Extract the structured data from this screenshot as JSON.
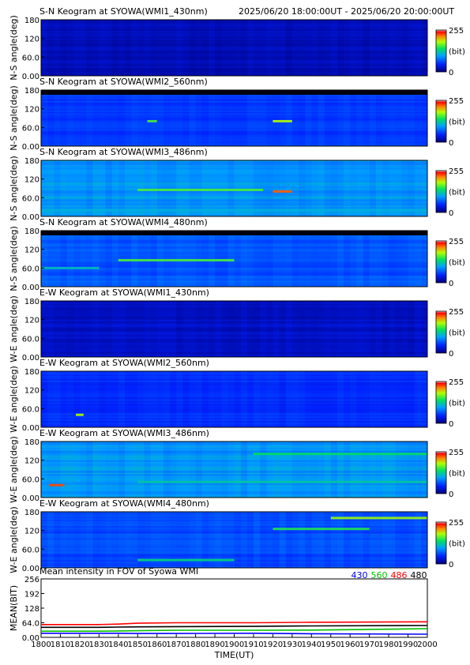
{
  "header": {
    "title": "S-N Keogram at SYOWA(WMI1_430nm)",
    "time_range": "2025/06/20 18:00:00UT - 2025/06/20 20:00:00UT"
  },
  "keograms": [
    {
      "title": "S-N Keogram at SYOWA(WMI1_430nm)",
      "ylabel": "N-S angle(deg)",
      "base": 0.08,
      "noise": 0.05,
      "bright": [],
      "top_dark": false
    },
    {
      "title": "S-N Keogram at SYOWA(WMI2_560nm)",
      "ylabel": "N-S angle(deg)",
      "base": 0.22,
      "noise": 0.05,
      "bright": [
        [
          1855,
          1860,
          80,
          0.62
        ],
        [
          1920,
          1930,
          80,
          0.72
        ]
      ],
      "top_dark": true
    },
    {
      "title": "S-N Keogram at SYOWA(WMI3_486nm)",
      "ylabel": "N-S angle(deg)",
      "base": 0.36,
      "noise": 0.07,
      "bright": [
        [
          1850,
          1915,
          85,
          0.62
        ],
        [
          1920,
          1930,
          80,
          0.88
        ],
        [
          1800,
          2000,
          20,
          0.42
        ]
      ],
      "top_dark": false
    },
    {
      "title": "S-N Keogram at SYOWA(WMI4_480nm)",
      "ylabel": "N-S angle(deg)",
      "base": 0.26,
      "noise": 0.06,
      "bright": [
        [
          1840,
          1900,
          85,
          0.62
        ],
        [
          1800,
          1830,
          60,
          0.45
        ]
      ],
      "top_dark": true
    },
    {
      "title": "E-W Keogram at SYOWA(WMI1_430nm)",
      "ylabel": "W-E angle(deg)",
      "base": 0.1,
      "noise": 0.05,
      "bright": [],
      "top_dark": false
    },
    {
      "title": "E-W Keogram at SYOWA(WMI2_560nm)",
      "ylabel": "W-E angle(deg)",
      "base": 0.2,
      "noise": 0.05,
      "bright": [
        [
          1818,
          1822,
          40,
          0.72
        ]
      ],
      "top_dark": false
    },
    {
      "title": "E-W Keogram at SYOWA(WMI3_486nm)",
      "ylabel": "W-E angle(deg)",
      "base": 0.36,
      "noise": 0.07,
      "bright": [
        [
          1804,
          1812,
          40,
          0.9
        ],
        [
          1910,
          2000,
          140,
          0.55
        ],
        [
          1850,
          2000,
          50,
          0.48
        ]
      ],
      "top_dark": false
    },
    {
      "title": "E-W Keogram at SYOWA(WMI4_480nm)",
      "ylabel": "W-E angle(deg)",
      "base": 0.25,
      "noise": 0.06,
      "bright": [
        [
          1950,
          2000,
          160,
          0.7
        ],
        [
          1920,
          1970,
          125,
          0.58
        ],
        [
          1850,
          1900,
          25,
          0.52
        ]
      ],
      "top_dark": false
    }
  ],
  "keogram_axes": {
    "yticks": [
      "180",
      "120",
      "60.0",
      "0.00"
    ],
    "yrange": [
      0,
      180
    ],
    "xrange": [
      1800,
      2000
    ]
  },
  "colorbar": {
    "max_label": "255",
    "unit_label": "(bit)",
    "min_label": "0"
  },
  "chart_data": {
    "type": "line",
    "title": "Mean intensity in FOV of Syowa WMI",
    "xlabel": "TIME(UT)",
    "ylabel": "MEAN(BIT)",
    "xlim": [
      1800,
      2000
    ],
    "ylim": [
      0,
      256
    ],
    "xticks": [
      "1800",
      "1810",
      "1820",
      "1830",
      "1840",
      "1850",
      "1860",
      "1870",
      "1880",
      "1890",
      "1900",
      "1910",
      "1920",
      "1930",
      "1940",
      "1950",
      "1960",
      "1970",
      "1980",
      "1990",
      "2000"
    ],
    "yticks": [
      "256",
      "192",
      "128",
      "64.0",
      "0.00"
    ],
    "x": [
      1800,
      1830,
      1840,
      1850,
      1870,
      1910,
      1940,
      2000
    ],
    "series": [
      {
        "name": "430",
        "color": "#0000ff",
        "values": [
          18,
          18,
          18,
          17,
          17,
          18,
          16,
          14
        ]
      },
      {
        "name": "560",
        "color": "#00c000",
        "values": [
          27,
          27,
          28,
          29,
          31,
          31,
          32,
          38
        ]
      },
      {
        "name": "486",
        "color": "#ff0000",
        "values": [
          56,
          56,
          58,
          62,
          64,
          64,
          66,
          68
        ]
      },
      {
        "name": "480",
        "color": "#000000",
        "values": [
          44,
          44,
          45,
          46,
          47,
          48,
          50,
          52
        ]
      }
    ]
  }
}
